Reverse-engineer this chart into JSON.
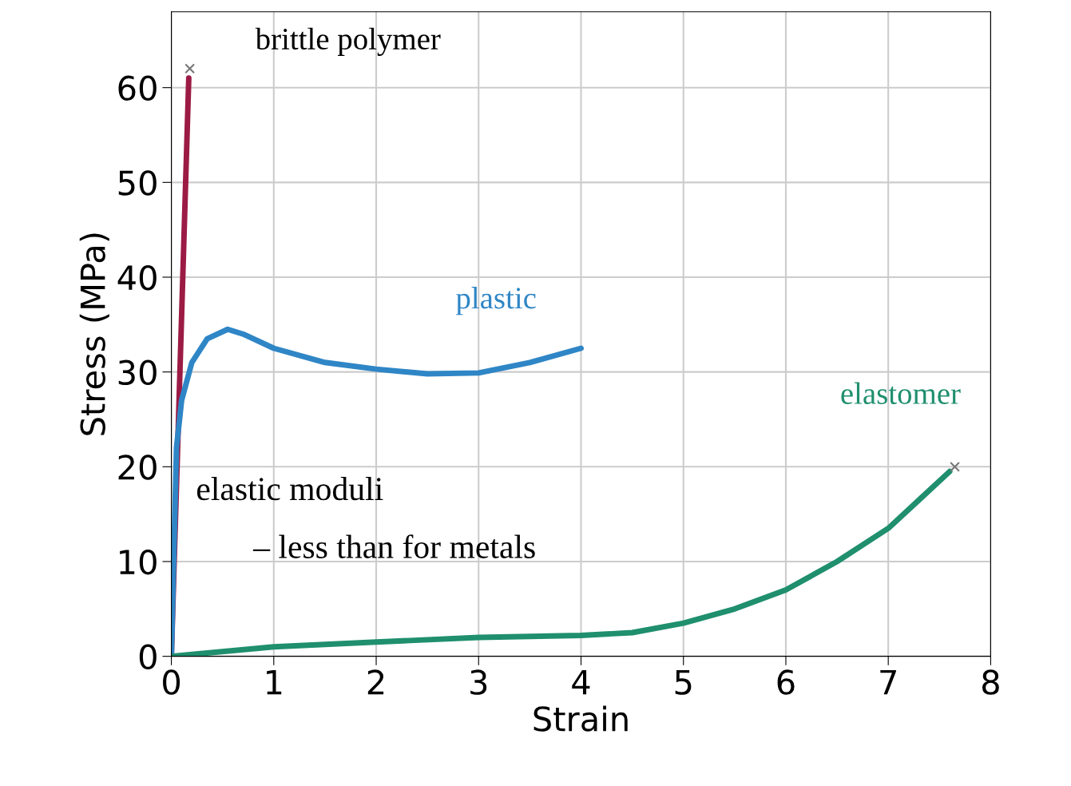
{
  "chart_data": {
    "type": "line",
    "xlabel": "Strain",
    "ylabel": "Stress (MPa)",
    "xlim": [
      0,
      8
    ],
    "ylim": [
      0,
      68
    ],
    "xticks": [
      0,
      1,
      2,
      3,
      4,
      5,
      6,
      7,
      8
    ],
    "yticks": [
      0,
      10,
      20,
      30,
      40,
      50,
      60
    ],
    "grid": true,
    "marker": "none",
    "line_style": "solid",
    "series": [
      {
        "name": "brittle polymer",
        "color": "#9b1b45",
        "x": [
          0,
          0.17
        ],
        "values": [
          0,
          61
        ]
      },
      {
        "name": "plastic",
        "color": "#2f86c6",
        "x": [
          0,
          0.05,
          0.1,
          0.2,
          0.35,
          0.55,
          0.7,
          1,
          1.5,
          2,
          2.5,
          3,
          3.5,
          4
        ],
        "values": [
          0,
          22,
          27,
          31,
          33.5,
          34.5,
          34,
          32.5,
          31,
          30.3,
          29.8,
          29.9,
          31,
          32.5
        ]
      },
      {
        "name": "elastomer",
        "color": "#1f8f6e",
        "x": [
          0,
          1,
          2,
          3,
          4,
          4.5,
          5,
          5.5,
          6,
          6.5,
          7,
          7.3,
          7.6
        ],
        "values": [
          0,
          1,
          1.5,
          2,
          2.2,
          2.5,
          3.5,
          5,
          7,
          10,
          13.5,
          16.5,
          19.5
        ]
      },
      {
        "type": "scatter",
        "marker": "cross",
        "color": "#777777",
        "x": [
          0.18,
          7.65
        ],
        "values": [
          62,
          20
        ]
      }
    ],
    "annotations": [
      "elastic moduli",
      "– less than for metals"
    ]
  }
}
